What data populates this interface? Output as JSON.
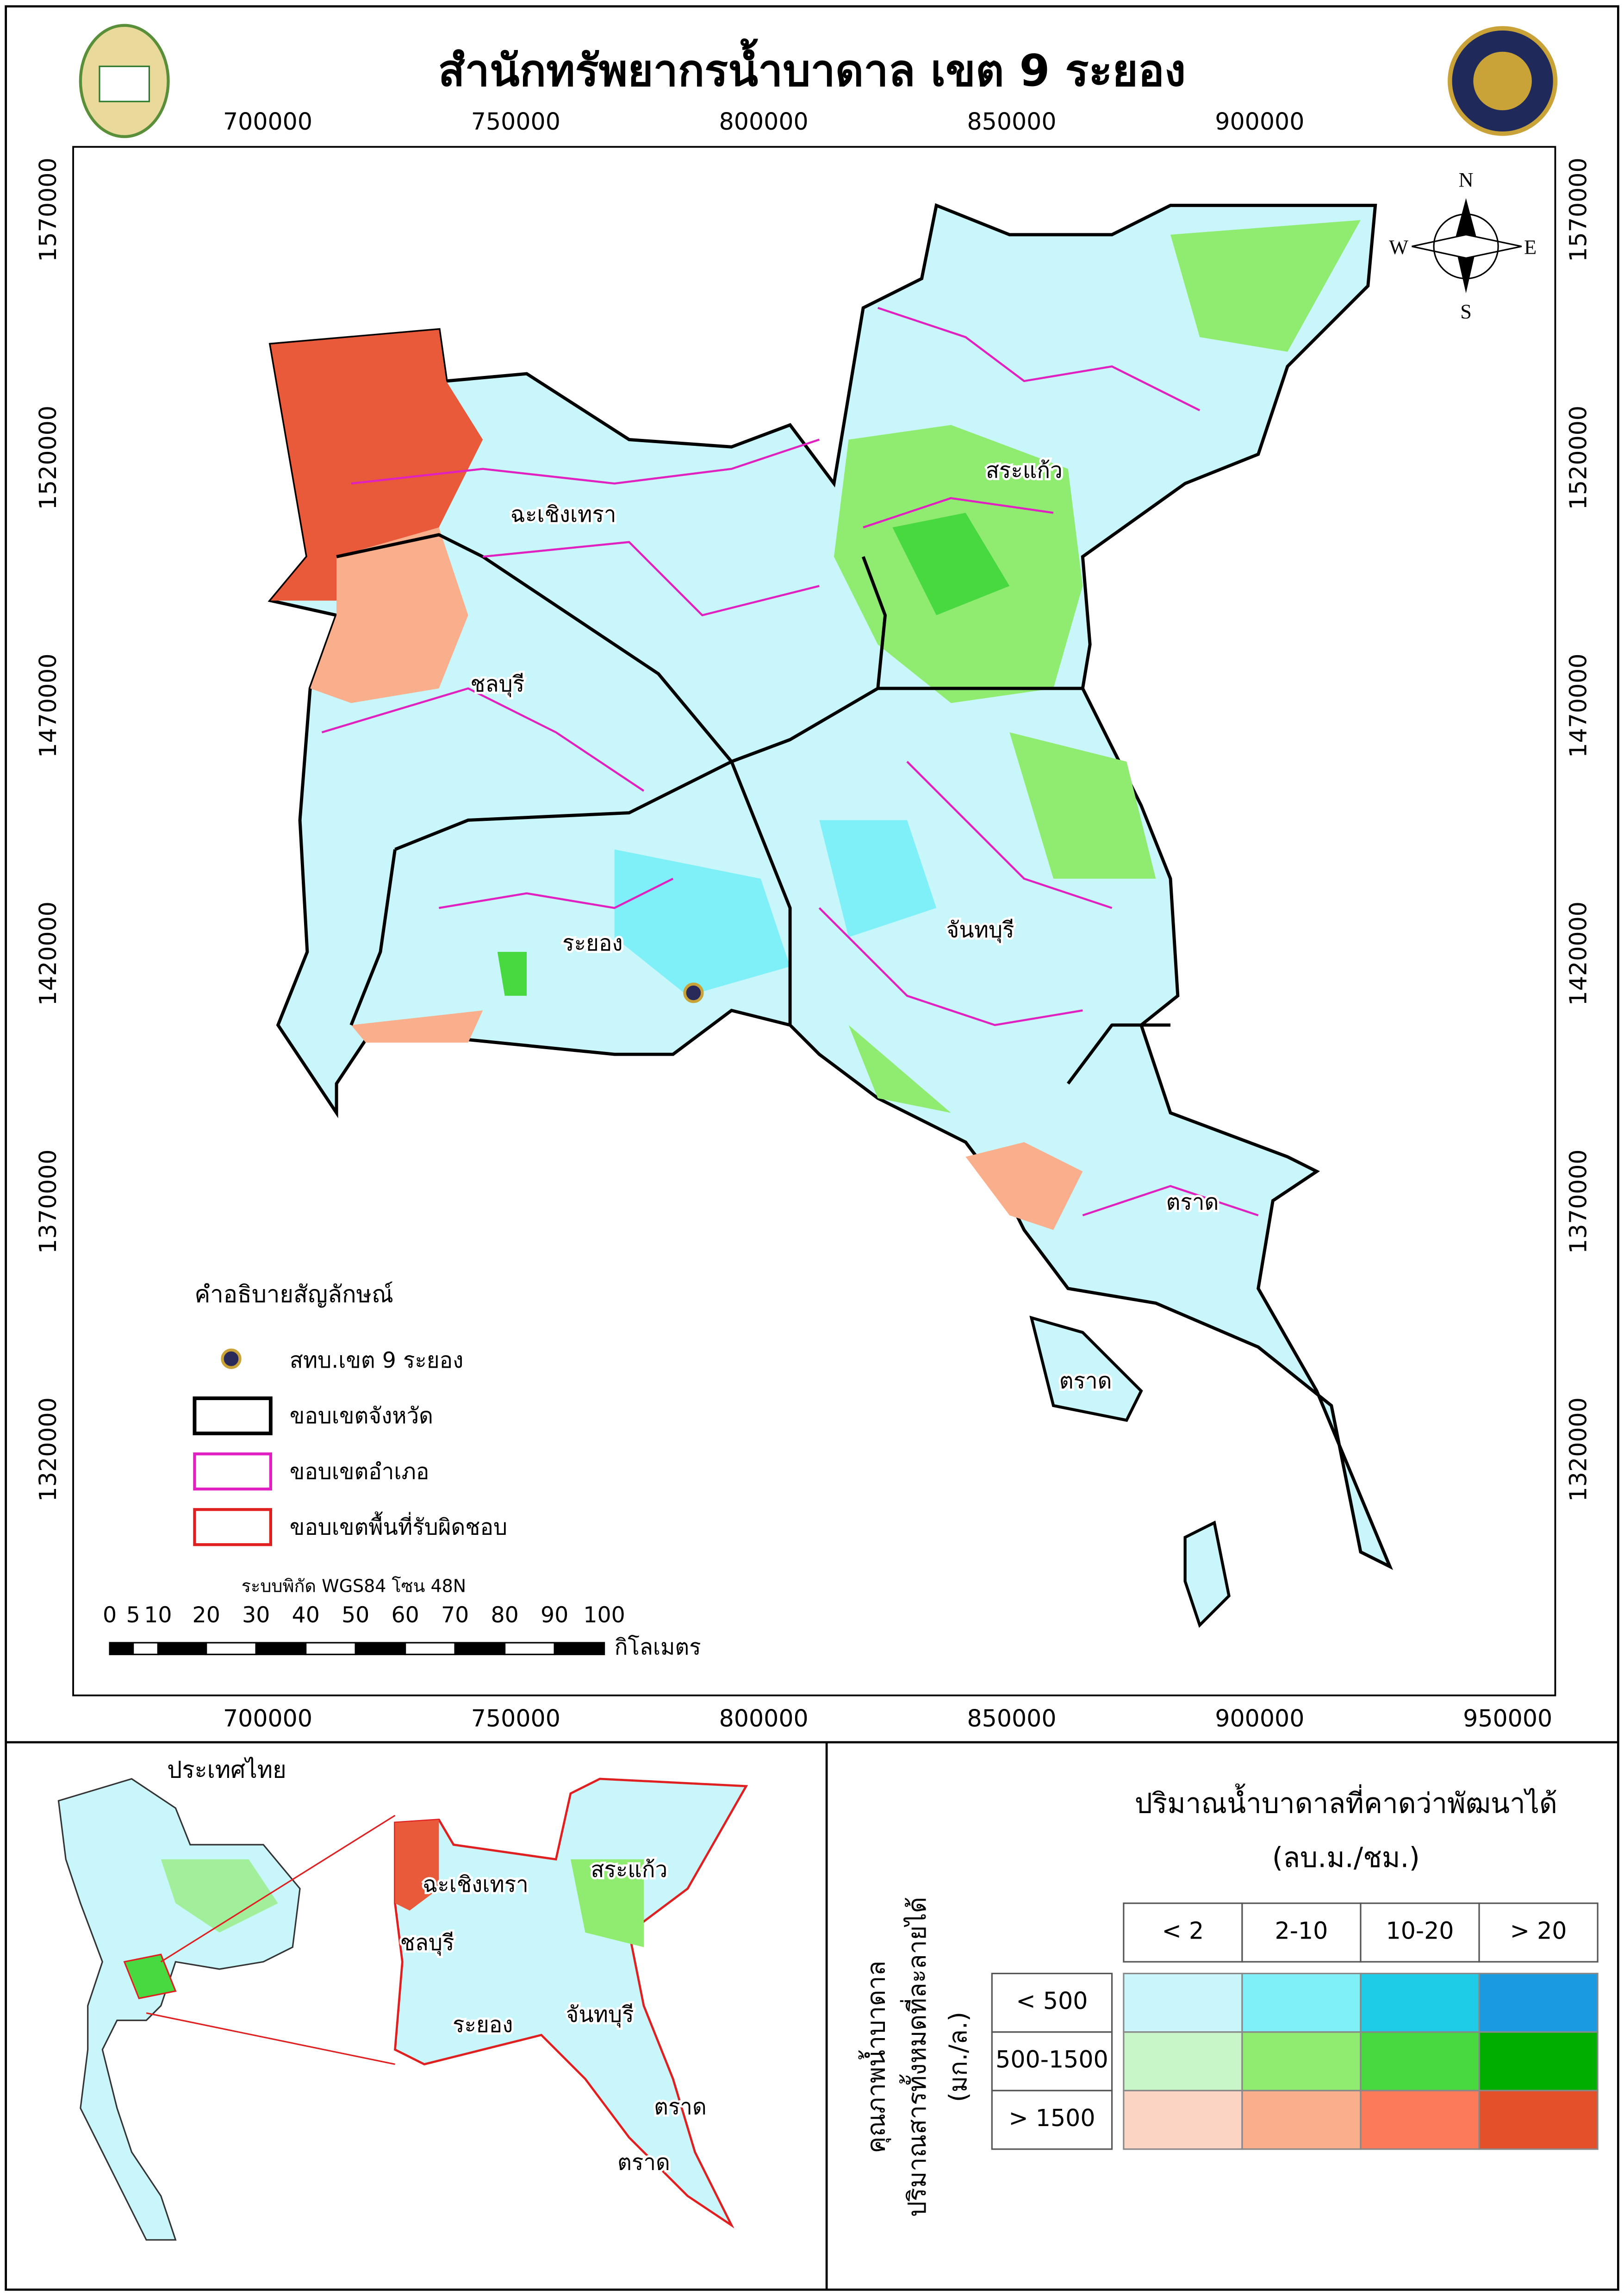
{
  "header": {
    "title": "สำนักทรัพยากรน้ำบาดาล เขต 9 ระยอง"
  },
  "grid": {
    "x_ticks": [
      "700000",
      "750000",
      "800000",
      "850000",
      "900000",
      "950000"
    ],
    "y_ticks": [
      "1570000",
      "1520000",
      "1470000",
      "1420000",
      "1370000",
      "1320000"
    ]
  },
  "compass": {
    "n": "N",
    "e": "E",
    "s": "S",
    "w": "W"
  },
  "map_labels": [
    "ฉะเชิงเทรา",
    "ชลบุรี",
    "สระแก้ว",
    "ระยอง",
    "จันทบุรี",
    "ตราด",
    "ตราด"
  ],
  "legend": {
    "title": "คำอธิบายสัญลักษณ์",
    "items": [
      "สทบ.เขต 9 ระยอง",
      "ขอบเขตจังหวัด",
      "ขอบเขตอำเภอ",
      "ขอบเขตพื้นที่รับผิดชอบ"
    ]
  },
  "scale": {
    "crs": "ระบบพิกัด WGS84 โซน 48N",
    "labels": [
      "0",
      "5",
      "10",
      "20",
      "30",
      "40",
      "50",
      "60",
      "70",
      "80",
      "90",
      "100"
    ],
    "unit": "กิโลเมตร"
  },
  "inset": {
    "title": "ประเทศไทย",
    "labels": [
      "ฉะเชิงเทรา",
      "สระแก้ว",
      "ชลบุรี",
      "ระยอง",
      "จันทบุรี",
      "ตราด",
      "ตราด"
    ]
  },
  "matrix": {
    "title": "ปริมาณน้ำบาดาลที่คาดว่าพัฒนาได้",
    "unit": "(ลบ.ม./ชม.)",
    "row_title": [
      "คุณภาพน้ำบาดาล",
      "ปริมาณสารทั้งหมดที่ละลายได้",
      "(มก./ล.)"
    ],
    "columns": [
      "< 2",
      "2-10",
      "10-20",
      "> 20"
    ],
    "rows": [
      "< 500",
      "500-1500",
      "> 1500"
    ],
    "colors": [
      [
        "#c8f6fa",
        "#80f0f8",
        "#1ecce8",
        "#1a9ae0"
      ],
      [
        "#c8f6c8",
        "#90ec70",
        "#48d840",
        "#00ae00"
      ],
      [
        "#fcd4c4",
        "#f9ae8c",
        "#fa7a5a",
        "#e4502a"
      ]
    ]
  }
}
